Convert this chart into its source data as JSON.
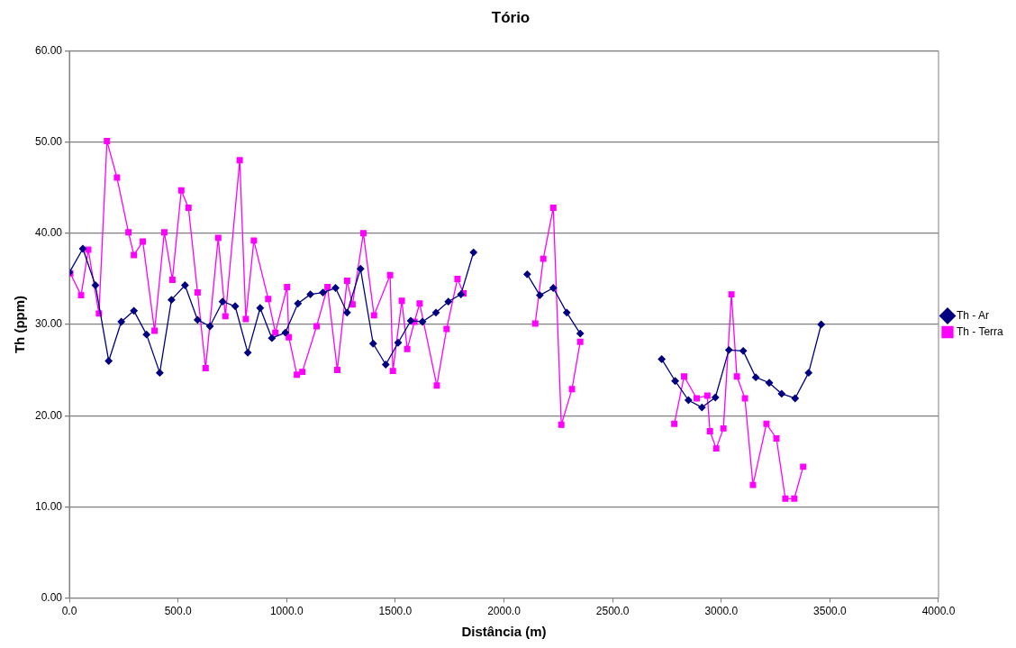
{
  "chart_data": {
    "type": "line",
    "title": "Tório",
    "xlabel": "Distância (m)",
    "ylabel": "Th (ppm)",
    "xlim": [
      0,
      4000
    ],
    "xticks": [
      {
        "value": 0,
        "label": "0.0"
      },
      {
        "value": 500,
        "label": "500.0"
      },
      {
        "value": 1000,
        "label": "1000.0"
      },
      {
        "value": 1500,
        "label": "1500.0"
      },
      {
        "value": 2000,
        "label": "2000.0"
      },
      {
        "value": 2500,
        "label": "2500.0"
      },
      {
        "value": 3000,
        "label": "3000.0"
      },
      {
        "value": 3500,
        "label": "3500.0"
      },
      {
        "value": 4000,
        "label": "4000.0"
      }
    ],
    "ylim": [
      0,
      60
    ],
    "yticks": [
      {
        "value": 0,
        "label": "0.00"
      },
      {
        "value": 10,
        "label": "10.00"
      },
      {
        "value": 20,
        "label": "20.00"
      },
      {
        "value": 30,
        "label": "30.00"
      },
      {
        "value": 40,
        "label": "40.00"
      },
      {
        "value": 50,
        "label": "50.00"
      },
      {
        "value": 60,
        "label": "60.00"
      }
    ],
    "grid": "y",
    "legend": "right",
    "line_style": "solid",
    "series": [
      {
        "name": "Th - Ar",
        "color": "#000080",
        "marker": "diamond",
        "x": [
          0,
          62,
          120,
          181,
          239,
          297,
          355,
          416,
          470,
          532,
          590,
          647,
          705,
          763,
          821,
          878,
          932,
          994,
          1052,
          1109,
          1167,
          1225,
          1278,
          1340,
          1398,
          1456,
          1513,
          1571,
          1625,
          1687,
          1744,
          1802,
          1860,
          2000,
          2107,
          2165,
          2227,
          2289,
          2351,
          2500,
          2726,
          2788,
          2849,
          2911,
          2973,
          3035,
          3101,
          3159,
          3221,
          3278,
          3340,
          3402,
          3460
        ],
        "values": [
          35.7,
          38.3,
          34.3,
          26.0,
          30.3,
          31.5,
          28.9,
          24.7,
          32.7,
          34.3,
          30.5,
          29.8,
          32.5,
          32.0,
          26.9,
          31.8,
          28.5,
          29.1,
          32.3,
          33.3,
          33.5,
          34.0,
          31.3,
          36.1,
          27.9,
          25.6,
          28.0,
          30.4,
          30.3,
          31.3,
          32.5,
          33.3,
          37.9,
          null,
          35.5,
          33.2,
          34.0,
          31.3,
          29.0,
          null,
          26.2,
          23.8,
          21.7,
          20.9,
          22.0,
          27.2,
          27.1,
          24.2,
          23.6,
          22.4,
          21.9,
          24.7,
          30.0
        ]
      },
      {
        "name": "Th - Terra",
        "color": "#ff00ff",
        "marker": "square",
        "x": [
          4,
          54,
          87,
          136,
          173,
          219,
          272,
          297,
          338,
          392,
          437,
          474,
          515,
          548,
          590,
          627,
          685,
          718,
          784,
          812,
          849,
          915,
          948,
          1002,
          1010,
          1047,
          1072,
          1138,
          1188,
          1233,
          1278,
          1303,
          1353,
          1402,
          1476,
          1489,
          1530,
          1555,
          1588,
          1612,
          1691,
          1736,
          1786,
          1814,
          2000,
          2144,
          2181,
          2227,
          2264,
          2313,
          2351,
          2500,
          2784,
          2829,
          2887,
          2936,
          2948,
          2977,
          3010,
          3047,
          3072,
          3109,
          3146,
          3208,
          3254,
          3295,
          3336,
          3377
        ],
        "values": [
          35.6,
          33.2,
          38.2,
          31.2,
          50.1,
          46.1,
          40.1,
          37.6,
          39.1,
          29.3,
          40.1,
          34.9,
          44.7,
          42.8,
          33.5,
          25.2,
          39.5,
          30.9,
          48.0,
          30.6,
          39.2,
          32.8,
          29.1,
          34.1,
          28.6,
          24.5,
          24.8,
          29.8,
          34.1,
          25.0,
          34.8,
          32.2,
          40.0,
          31.0,
          35.4,
          24.9,
          32.6,
          27.3,
          30.3,
          32.3,
          23.3,
          29.5,
          35.0,
          33.4,
          null,
          30.1,
          37.2,
          42.8,
          19.0,
          22.9,
          28.1,
          null,
          19.1,
          24.3,
          21.9,
          22.2,
          18.3,
          16.4,
          18.6,
          33.3,
          24.3,
          21.9,
          12.4,
          19.1,
          17.5,
          10.9,
          10.9,
          14.4
        ]
      }
    ]
  }
}
